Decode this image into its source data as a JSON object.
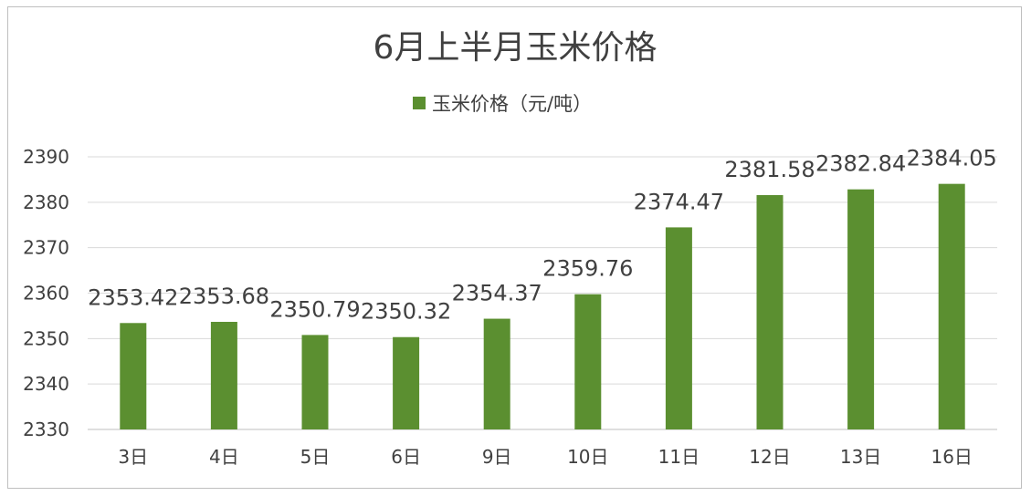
{
  "chart_data": {
    "type": "bar",
    "title": "6月上半月玉米价格",
    "categories": [
      "3日",
      "4日",
      "5日",
      "6日",
      "9日",
      "10日",
      "11日",
      "12日",
      "13日",
      "16日"
    ],
    "series": [
      {
        "name": "玉米价格（元/吨）",
        "values": [
          2353.42,
          2353.68,
          2350.79,
          2350.32,
          2354.37,
          2359.76,
          2374.47,
          2381.58,
          2382.84,
          2384.05
        ],
        "labels": [
          "2353.42",
          "2353.68",
          "2350.79",
          "2350.32",
          "2354.37",
          "2359.76",
          "2374.47",
          "2381.58",
          "2382.84",
          "2384.05"
        ],
        "color": "#5b8f30"
      }
    ],
    "ylim": [
      2330,
      2390
    ],
    "yticks": [
      "2330",
      "2340",
      "2350",
      "2360",
      "2370",
      "2380",
      "2390"
    ],
    "grid": true,
    "legend": "top"
  }
}
